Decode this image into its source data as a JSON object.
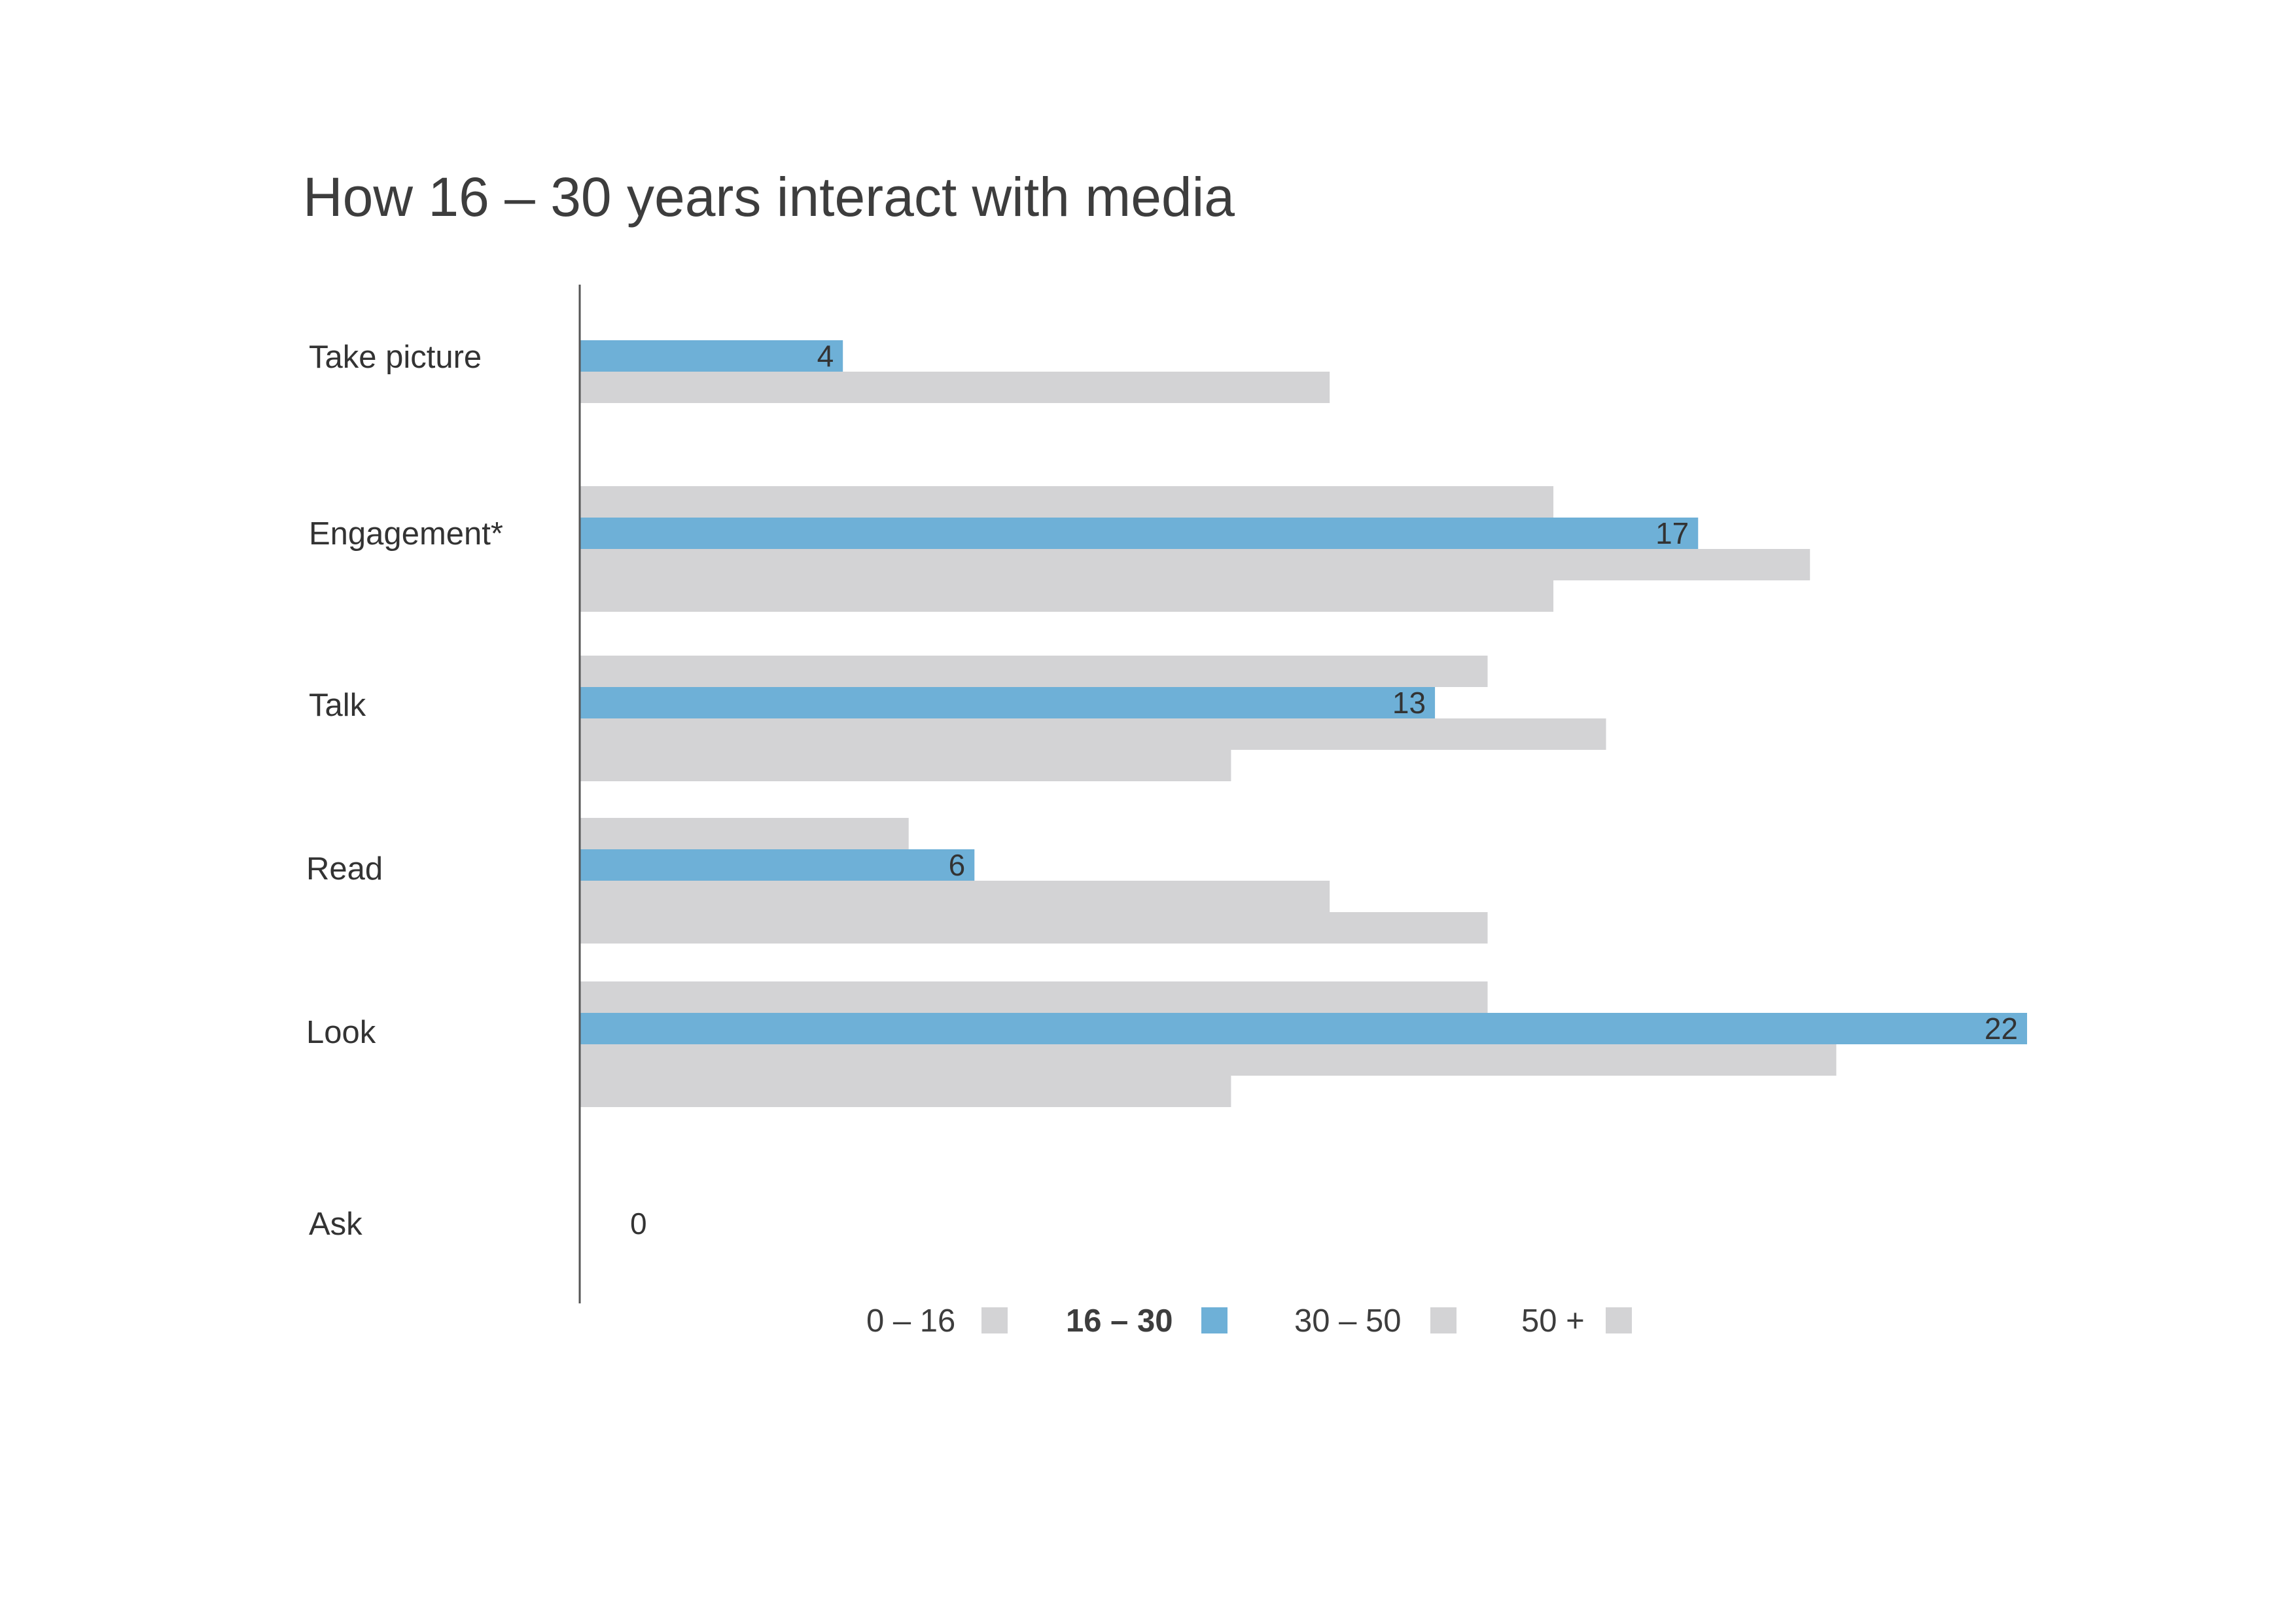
{
  "chart_data": {
    "type": "bar",
    "orientation": "horizontal",
    "title": "How 16 – 30 years interact with media",
    "categories": [
      "Take picture",
      "Engagement*",
      "Talk",
      "Read",
      "Look",
      "Ask"
    ],
    "series": [
      {
        "name": "0 – 16",
        "color": "#d3d3d5",
        "values": [
          null,
          14.8,
          13.8,
          5,
          13.8,
          null
        ]
      },
      {
        "name": "16 – 30",
        "color": "#6eb0d7",
        "values": [
          4,
          17,
          13,
          6,
          22,
          0
        ],
        "highlight": true
      },
      {
        "name": "30 – 50",
        "color": "#d3d3d5",
        "values": [
          11.4,
          18.7,
          15.6,
          11.4,
          19.1,
          null
        ]
      },
      {
        "name": "50 +",
        "color": "#d3d3d5",
        "values": [
          null,
          14.8,
          9.9,
          13.8,
          9.9,
          null
        ]
      }
    ],
    "data_labels": [
      "4",
      "17",
      "13",
      "6",
      "22",
      "0"
    ],
    "xlim": [
      0,
      22
    ],
    "grid": false,
    "legend": "bottom"
  },
  "colors": {
    "highlight": "#6eb0d7",
    "other": "#d3d3d5",
    "axis": "#555555"
  }
}
